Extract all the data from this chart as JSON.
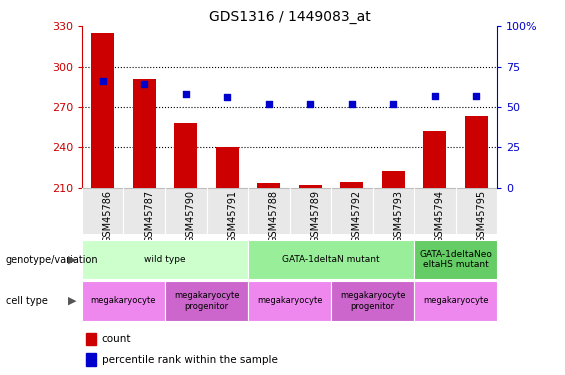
{
  "title": "GDS1316 / 1449083_at",
  "samples": [
    "GSM45786",
    "GSM45787",
    "GSM45790",
    "GSM45791",
    "GSM45788",
    "GSM45789",
    "GSM45792",
    "GSM45793",
    "GSM45794",
    "GSM45795"
  ],
  "bar_values": [
    325,
    291,
    258,
    240,
    213,
    212,
    214,
    222,
    252,
    263
  ],
  "percentile_values": [
    66,
    64,
    58,
    56,
    52,
    52,
    52,
    52,
    57,
    57
  ],
  "bar_color": "#cc0000",
  "dot_color": "#0000cc",
  "ylim_left": [
    210,
    330
  ],
  "ylim_right": [
    0,
    100
  ],
  "yticks_left": [
    210,
    240,
    270,
    300,
    330
  ],
  "yticks_right": [
    0,
    25,
    50,
    75,
    100
  ],
  "grid_values": [
    240,
    270,
    300
  ],
  "genotype_groups": [
    {
      "label": "wild type",
      "start": 0,
      "end": 4,
      "color": "#ccffcc"
    },
    {
      "label": "GATA-1deltaN mutant",
      "start": 4,
      "end": 8,
      "color": "#99ee99"
    },
    {
      "label": "GATA-1deltaNeo\neltaHS mutant",
      "start": 8,
      "end": 10,
      "color": "#66cc66"
    }
  ],
  "cell_type_groups": [
    {
      "label": "megakaryocyte",
      "start": 0,
      "end": 2,
      "color": "#ee88ee"
    },
    {
      "label": "megakaryocyte\nprogenitor",
      "start": 2,
      "end": 4,
      "color": "#cc66cc"
    },
    {
      "label": "megakaryocyte",
      "start": 4,
      "end": 6,
      "color": "#ee88ee"
    },
    {
      "label": "megakaryocyte\nprogenitor",
      "start": 6,
      "end": 8,
      "color": "#cc66cc"
    },
    {
      "label": "megakaryocyte",
      "start": 8,
      "end": 10,
      "color": "#ee88ee"
    }
  ],
  "left_axis_color": "#cc0000",
  "right_axis_color": "#0000cc",
  "gray_bg": "#d3d3d3",
  "legend_items": [
    {
      "label": "count",
      "color": "#cc0000"
    },
    {
      "label": "percentile rank within the sample",
      "color": "#0000cc"
    }
  ]
}
